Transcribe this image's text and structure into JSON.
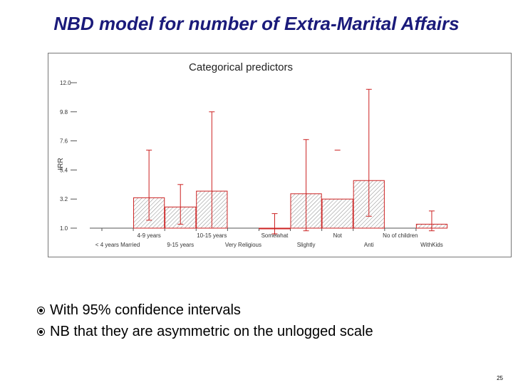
{
  "slide": {
    "title": "NBD model for number of Extra-Marital Affairs",
    "bullets": [
      "With 95% confidence intervals",
      "NB that they are asymmetric on the unlogged scale"
    ],
    "page_number": "25"
  },
  "colors": {
    "title": "#1a1a7a",
    "bar_stroke": "#cc2222",
    "hatch": "#888888",
    "axis": "#555555"
  },
  "chart_data": {
    "type": "bar",
    "title": "Categorical predictors",
    "ylabel": "IRR",
    "y_ticks": [
      {
        "value": 1.0,
        "label": "1.0"
      },
      {
        "value": 3.2,
        "label": "3.2"
      },
      {
        "value": 5.4,
        "label": "5.4"
      },
      {
        "value": 7.6,
        "label": "7.6"
      },
      {
        "value": 9.8,
        "label": "9.8"
      },
      {
        "value": 12.0,
        "label": "12.0"
      }
    ],
    "ylim": [
      1.0,
      12.0
    ],
    "categories": [
      {
        "label": "< 4 years Married",
        "value": null,
        "ci_low": null,
        "ci_high": null
      },
      {
        "label": "4-9 years",
        "value": 3.3,
        "ci_low": 1.6,
        "ci_high": 6.9
      },
      {
        "label": "9-15 years",
        "value": 2.6,
        "ci_low": 1.3,
        "ci_high": 4.3
      },
      {
        "label": "10-15 years",
        "value": 3.8,
        "ci_low": 1.0,
        "ci_high": 9.8
      },
      {
        "label": "Very Religious",
        "value": null,
        "ci_low": null,
        "ci_high": null
      },
      {
        "label": "Somewhat",
        "value": 1.0,
        "ci_low": 0.5,
        "ci_high": 2.1
      },
      {
        "label": "Slightly",
        "value": 3.6,
        "ci_low": 0.8,
        "ci_high": 7.7
      },
      {
        "label": "Not",
        "value": 3.2,
        "ci_low": null,
        "ci_high": 6.9
      },
      {
        "label": "Anti",
        "value": 4.6,
        "ci_low": 1.9,
        "ci_high": 11.5
      },
      {
        "label": "No of children",
        "value": null,
        "ci_low": null,
        "ci_high": null
      },
      {
        "label": "WithKids",
        "value": 1.3,
        "ci_low": 0.8,
        "ci_high": 2.3
      }
    ]
  }
}
